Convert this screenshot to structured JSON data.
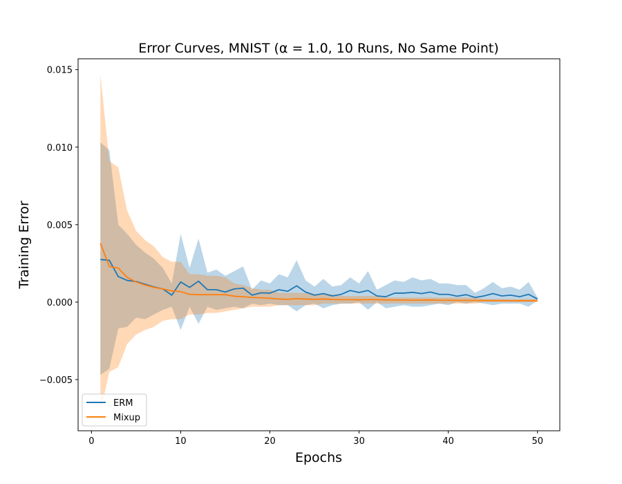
{
  "chart_data": {
    "type": "line",
    "title": "Error Curves, MNIST (α = 1.0, 10 Runs, No Same Point)",
    "xlabel": "Epochs",
    "ylabel": "Training Error",
    "xlim": [
      -1.5,
      52.5
    ],
    "ylim": [
      -0.0083,
      0.0157
    ],
    "xticks": [
      0,
      10,
      20,
      30,
      40,
      50
    ],
    "xtick_labels": [
      "0",
      "10",
      "20",
      "30",
      "40",
      "50"
    ],
    "yticks": [
      -0.005,
      0.0,
      0.005,
      0.01,
      0.015
    ],
    "ytick_labels": [
      "−0.005",
      "0.000",
      "0.005",
      "0.010",
      "0.015"
    ],
    "grid": false,
    "legend_position": "lower-left",
    "x": [
      1,
      2,
      3,
      4,
      5,
      6,
      7,
      8,
      9,
      10,
      11,
      12,
      13,
      14,
      15,
      16,
      17,
      18,
      19,
      20,
      21,
      22,
      23,
      24,
      25,
      26,
      27,
      28,
      29,
      30,
      31,
      32,
      33,
      34,
      35,
      36,
      37,
      38,
      39,
      40,
      41,
      42,
      43,
      44,
      45,
      46,
      47,
      48,
      49,
      50
    ],
    "series": [
      {
        "name": "ERM",
        "color": "#1f77b4",
        "band_color": "#1f77b4",
        "mean": [
          0.00275,
          0.0027,
          0.00165,
          0.0014,
          0.00133,
          0.00115,
          0.00098,
          0.00085,
          0.00045,
          0.0013,
          0.00095,
          0.00135,
          0.0008,
          0.0008,
          0.00065,
          0.00085,
          0.0009,
          0.00045,
          0.0006,
          0.00058,
          0.0008,
          0.0007,
          0.00105,
          0.00065,
          0.00045,
          0.00055,
          0.0004,
          0.0005,
          0.00075,
          0.00062,
          0.00075,
          0.0004,
          0.00035,
          0.00058,
          0.00058,
          0.00063,
          0.00055,
          0.00065,
          0.0005,
          0.0005,
          0.00038,
          0.00048,
          0.0003,
          0.0004,
          0.00055,
          0.0004,
          0.00045,
          0.00035,
          0.0005,
          0.0002
        ],
        "upper": [
          0.0103,
          0.0098,
          0.005,
          0.0044,
          0.0037,
          0.0032,
          0.0028,
          0.0022,
          0.0012,
          0.0044,
          0.0022,
          0.0041,
          0.0019,
          0.0021,
          0.0017,
          0.002,
          0.0023,
          0.0008,
          0.0014,
          0.0012,
          0.0018,
          0.0016,
          0.0027,
          0.0014,
          0.001,
          0.0015,
          0.001,
          0.0011,
          0.0016,
          0.0012,
          0.002,
          0.0008,
          0.0011,
          0.0014,
          0.0013,
          0.0016,
          0.0014,
          0.0015,
          0.0012,
          0.0012,
          0.0011,
          0.0011,
          0.0006,
          0.0009,
          0.0013,
          0.0009,
          0.001,
          0.0008,
          0.0013,
          0.0003
        ],
        "lower": [
          -0.0047,
          -0.0043,
          -0.0017,
          -0.0016,
          -0.001,
          -0.0011,
          -0.0008,
          -0.0005,
          -0.0003,
          -0.0018,
          -0.0003,
          -0.0014,
          -0.0003,
          -0.0005,
          -0.0004,
          -0.0003,
          -0.0004,
          -0.0001,
          -0.0002,
          -0.0001,
          -0.0002,
          -0.0002,
          -0.0006,
          -0.0002,
          -0.0001,
          -0.0004,
          -0.0002,
          -0.0001,
          -0.0001,
          -0.0,
          -0.0005,
          -0.0,
          -0.0004,
          -0.0003,
          -0.0002,
          -0.0003,
          -0.0003,
          -0.0002,
          -0.0001,
          -0.0002,
          -0.0,
          -0.0001,
          0.0,
          -0.0001,
          -0.0002,
          -0.0001,
          -0.0001,
          -0.0001,
          -0.0003,
          0.0001
        ]
      },
      {
        "name": "Mixup",
        "color": "#ff7f0e",
        "band_color": "#ff7f0e",
        "mean": [
          0.0038,
          0.0023,
          0.0022,
          0.0016,
          0.0013,
          0.0011,
          0.00095,
          0.00085,
          0.00072,
          0.00068,
          0.0005,
          0.00048,
          0.00048,
          0.00048,
          0.00048,
          0.00038,
          0.00035,
          0.0003,
          0.00028,
          0.00025,
          0.0002,
          0.00018,
          0.00022,
          0.0002,
          0.00018,
          0.0002,
          0.00017,
          0.00016,
          0.00016,
          0.00015,
          0.00016,
          0.00016,
          0.00014,
          0.00014,
          0.00013,
          0.00012,
          0.00013,
          0.00014,
          0.00012,
          0.00012,
          0.00011,
          0.00011,
          0.00011,
          0.0001,
          0.0001,
          0.0001,
          9e-05,
          9e-05,
          9e-05,
          9e-05
        ],
        "upper": [
          0.0147,
          0.0091,
          0.0087,
          0.0059,
          0.0046,
          0.004,
          0.0036,
          0.0029,
          0.0026,
          0.0026,
          0.0018,
          0.0018,
          0.0017,
          0.0017,
          0.0016,
          0.0012,
          0.0011,
          0.0009,
          0.0008,
          0.0008,
          0.0006,
          0.0006,
          0.0006,
          0.0006,
          0.0005,
          0.0005,
          0.0005,
          0.0004,
          0.0004,
          0.0004,
          0.0004,
          0.0004,
          0.0003,
          0.0003,
          0.0003,
          0.0003,
          0.0003,
          0.0003,
          0.0003,
          0.0003,
          0.0003,
          0.0003,
          0.0003,
          0.0002,
          0.0002,
          0.0002,
          0.0002,
          0.0002,
          0.0002,
          0.0002
        ],
        "lower": [
          -0.0071,
          -0.0045,
          -0.0042,
          -0.0027,
          -0.0021,
          -0.0018,
          -0.0016,
          -0.0012,
          -0.0011,
          -0.0011,
          -0.0008,
          -0.0008,
          -0.0007,
          -0.0007,
          -0.0006,
          -0.0005,
          -0.0004,
          -0.0003,
          -0.0003,
          -0.0003,
          -0.0002,
          -0.0002,
          -0.0002,
          -0.0002,
          -0.0002,
          -0.0001,
          -0.0001,
          -0.0001,
          -0.0001,
          -0.0001,
          -0.0001,
          -0.0001,
          -0.0001,
          -0.0001,
          -0.0001,
          -0.0001,
          -0.0001,
          -0.0001,
          -0.0001,
          -0.0001,
          -0.0001,
          -0.0001,
          -0.0001,
          -0.0,
          -0.0,
          -0.0,
          -0.0,
          -0.0,
          -0.0,
          -0.0
        ]
      }
    ]
  }
}
